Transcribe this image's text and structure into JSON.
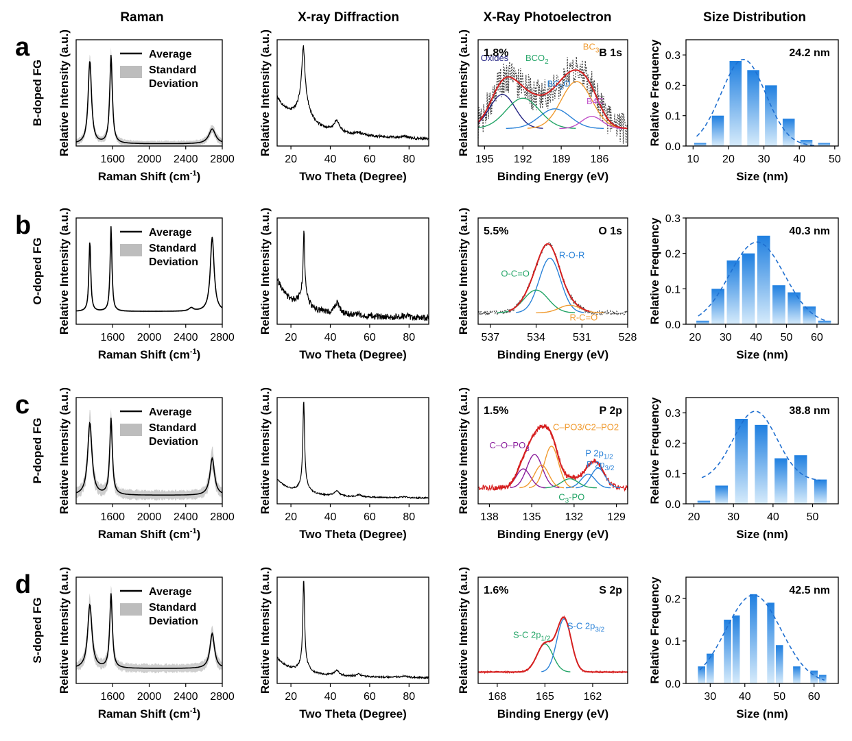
{
  "columns": [
    "Raman",
    "X-ray Diffraction",
    "X-Ray Photoelectron",
    "Size Distribution"
  ],
  "colors": {
    "line": "#000000",
    "band": "#bdbdbd",
    "envelope": "#d62020",
    "raw": "#444444",
    "bar_top": "#1f7fe0",
    "bar_bottom": "#d6ebfb",
    "fit": "#1f6fd0"
  },
  "legend": {
    "average": "Average",
    "std_line1": "Standard",
    "std_line2": "Deviation"
  },
  "chart_data": [
    {
      "row": "a",
      "row_label": "B-doped FG",
      "raman": {
        "type": "line",
        "xlabel": "Raman Shift (cm-1)",
        "xlabel_main": "Raman Shift (cm",
        "xlabel_sup": "-1",
        "xlabel_end": ")",
        "ylabel": "Relative Intensity (a.u.)",
        "xlim": [
          1200,
          2800
        ],
        "xticks": [
          1600,
          2000,
          2400,
          2800
        ],
        "tick_labels": [
          "1600",
          "2000",
          "2400",
          "2800"
        ],
        "peaks": [
          [
            1350,
            0.78,
            22
          ],
          [
            1582,
            0.83,
            17
          ],
          [
            2690,
            0.14,
            45
          ]
        ],
        "baseline": 0.02,
        "std": 0.06
      },
      "xrd": {
        "type": "line",
        "xlabel": "Two Theta (Degree)",
        "ylabel": "Relative Intensity (a.u.)",
        "xlim": [
          13,
          90
        ],
        "xticks": [
          20,
          40,
          60,
          80
        ],
        "tick_labels": [
          "20",
          "40",
          "60",
          "80"
        ],
        "peaks": [
          [
            26.3,
            0.48,
            0.9
          ],
          [
            26.3,
            0.25,
            3.5
          ],
          [
            43.2,
            0.1,
            1.6
          ],
          [
            54.5,
            0.02,
            1.5
          ],
          [
            77.5,
            0.02,
            1.5
          ]
        ],
        "baseline": 0.22,
        "decay": 0.18,
        "noise": 0.012
      },
      "xps": {
        "type": "line",
        "xlabel": "Binding Energy (eV)",
        "ylabel": "Relative Intensity (a.u.)",
        "xlim": [
          195.5,
          183.8
        ],
        "xticks": [
          195,
          192,
          189,
          186
        ],
        "tick_labels": [
          "195",
          "192",
          "189",
          "186"
        ],
        "percent": "1.8%",
        "core": "B 1s",
        "raw_noise": 0.22,
        "base_level": 0.08,
        "components": [
          {
            "label": "Oxides",
            "center": 193.6,
            "amp": 0.45,
            "width": 1.0,
            "color": "#232383",
            "lx": 195.3,
            "ly": 0.97
          },
          {
            "label": "BCO2",
            "center": 192.0,
            "amp": 0.4,
            "width": 1.3,
            "color": "#22a466",
            "lx": 191.8,
            "ly": 0.97
          },
          {
            "label": "BC3",
            "center": 187.8,
            "amp": 0.62,
            "width": 1.2,
            "color": "#f09a2e",
            "lx": 187.3,
            "ly": 1.12
          },
          {
            "label": "BC2O",
            "center": 189.5,
            "amp": 0.26,
            "width": 1.2,
            "color": "#2a82d8",
            "lx": 190.1,
            "ly": 0.63
          },
          {
            "label": "B4C",
            "center": 186.6,
            "amp": 0.16,
            "width": 0.8,
            "color": "#c050c8",
            "lx": 186.3,
            "ly": 0.4
          }
        ],
        "sub": {
          "BCO2": "2",
          "BC3": "3",
          "BC2O": "2"
        }
      },
      "size": {
        "type": "bar",
        "xlabel": "Size (nm)",
        "ylabel": "Relative Frequency",
        "xlim": [
          8,
          51
        ],
        "xticks": [
          10,
          20,
          30,
          40,
          50
        ],
        "tick_labels": [
          "10",
          "20",
          "30",
          "40",
          "50"
        ],
        "ylim": [
          0,
          0.35
        ],
        "yticks": [
          0.0,
          0.1,
          0.2,
          0.3
        ],
        "ytick_labels": [
          "0.0",
          "0.1",
          "0.2",
          "0.3"
        ],
        "mean_label": "24.2 nm",
        "bar_width": 3.4,
        "categories": [
          12,
          17,
          22,
          27,
          32,
          37,
          42,
          47
        ],
        "values": [
          0.01,
          0.1,
          0.28,
          0.25,
          0.2,
          0.09,
          0.02,
          0.01
        ],
        "fit": {
          "mu": 24.2,
          "sigma": 6.3,
          "amp": 0.285,
          "x0": 11,
          "x1": 45
        }
      }
    },
    {
      "row": "b",
      "row_label": "O-doped FG",
      "raman": {
        "type": "line",
        "xlabel": "Raman Shift (cm-1)",
        "xlabel_main": "Raman Shift (cm",
        "xlabel_sup": "-1",
        "xlabel_end": ")",
        "ylabel": "Relative Intensity (a.u.)",
        "xlim": [
          1200,
          2800
        ],
        "xticks": [
          1600,
          2000,
          2400,
          2800
        ],
        "tick_labels": [
          "1600",
          "2000",
          "2400",
          "2800"
        ],
        "peaks": [
          [
            1350,
            0.67,
            12
          ],
          [
            1582,
            0.8,
            12
          ],
          [
            2460,
            0.03,
            30
          ],
          [
            2690,
            0.7,
            25
          ]
        ],
        "baseline": 0.12,
        "std": 0.02
      },
      "xrd": {
        "type": "line",
        "xlabel": "Two Theta (Degree)",
        "ylabel": "Relative Intensity (a.u.)",
        "xlim": [
          13,
          90
        ],
        "xticks": [
          20,
          40,
          60,
          80
        ],
        "tick_labels": [
          "20",
          "40",
          "60",
          "80"
        ],
        "peaks": [
          [
            26.6,
            0.6,
            0.45
          ],
          [
            26.6,
            0.15,
            2.5
          ],
          [
            43.5,
            0.1,
            1.5
          ],
          [
            54.6,
            0.015,
            1.4
          ],
          [
            78.2,
            0.02,
            1.4
          ]
        ],
        "baseline": 0.12,
        "decay": 0.25,
        "noise": 0.03
      },
      "xps": {
        "type": "line",
        "xlabel": "Binding Energy (eV)",
        "ylabel": "Relative Intensity (a.u.)",
        "xlim": [
          537.8,
          528
        ],
        "xticks": [
          537,
          534,
          531,
          528
        ],
        "tick_labels": [
          "537",
          "534",
          "531",
          "528"
        ],
        "percent": "5.5%",
        "core": "O 1s",
        "raw_noise": 0.03,
        "base_level": 0.0,
        "env_range": [
          535.8,
          530.5
        ],
        "components": [
          {
            "label": "R-O-R",
            "center": 533.1,
            "amp": 0.72,
            "width": 0.7,
            "color": "#2a82d8",
            "lx": 532.5,
            "ly": 0.72
          },
          {
            "label": "O-C=O",
            "center": 534.0,
            "amp": 0.3,
            "width": 0.8,
            "color": "#22a466",
            "lx": 536.3,
            "ly": 0.48
          },
          {
            "label": "R-C=O",
            "center": 531.8,
            "amp": 0.1,
            "width": 0.7,
            "color": "#f09a2e",
            "lx": 531.8,
            "ly": -0.1
          }
        ],
        "sub": {}
      },
      "size": {
        "type": "bar",
        "xlabel": "Size (nm)",
        "ylabel": "Relative Frequency",
        "xlim": [
          17,
          67
        ],
        "xticks": [
          20,
          30,
          40,
          50,
          60
        ],
        "tick_labels": [
          "20",
          "30",
          "40",
          "50",
          "60"
        ],
        "ylim": [
          0,
          0.3
        ],
        "yticks": [
          0.0,
          0.1,
          0.2,
          0.3
        ],
        "ytick_labels": [
          "0.0",
          "0.1",
          "0.2",
          "0.3"
        ],
        "mean_label": "40.3 nm",
        "bar_width": 4.2,
        "categories": [
          22.5,
          27.5,
          32.5,
          37.5,
          42.5,
          47.5,
          52.5,
          57.5,
          62.5
        ],
        "values": [
          0.01,
          0.1,
          0.18,
          0.2,
          0.25,
          0.11,
          0.09,
          0.05,
          0.01
        ],
        "fit": {
          "mu": 40.3,
          "sigma": 9.0,
          "amp": 0.232,
          "x0": 21,
          "x1": 63
        }
      }
    },
    {
      "row": "c",
      "row_label": "P-doped FG",
      "raman": {
        "type": "line",
        "xlabel": "Raman Shift (cm-1)",
        "xlabel_main": "Raman Shift (cm",
        "xlabel_sup": "-1",
        "xlabel_end": ")",
        "ylabel": "Relative Intensity (a.u.)",
        "xlim": [
          1200,
          2800
        ],
        "xticks": [
          1600,
          2000,
          2400,
          2800
        ],
        "tick_labels": [
          "1600",
          "2000",
          "2400",
          "2800"
        ],
        "peaks": [
          [
            1350,
            0.68,
            28
          ],
          [
            1582,
            0.72,
            17
          ],
          [
            2690,
            0.35,
            30
          ]
        ],
        "baseline": 0.08,
        "std": 0.1
      },
      "xrd": {
        "type": "line",
        "xlabel": "Two Theta (Degree)",
        "ylabel": "Relative Intensity (a.u.)",
        "xlim": [
          13,
          90
        ],
        "xticks": [
          20,
          40,
          60,
          80
        ],
        "tick_labels": [
          "20",
          "40",
          "60",
          "80"
        ],
        "peaks": [
          [
            26.5,
            0.78,
            0.5
          ],
          [
            26.5,
            0.1,
            2.5
          ],
          [
            43.2,
            0.05,
            1.4
          ],
          [
            54.5,
            0.02,
            1.4
          ],
          [
            77.5,
            0.01,
            1.4
          ]
        ],
        "baseline": 0.06,
        "decay": 0.12,
        "noise": 0.006
      },
      "xps": {
        "type": "line",
        "xlabel": "Binding Energy (eV)",
        "ylabel": "Relative Intensity (a.u.)",
        "xlim": [
          138.8,
          128.2
        ],
        "xticks": [
          138,
          135,
          132,
          129
        ],
        "tick_labels": [
          "138",
          "135",
          "132",
          "129"
        ],
        "percent": "1.5%",
        "core": "P 2p",
        "raw_noise": 0.035,
        "base_level": 0.06,
        "env_range": [
          137.5,
          129.8
        ],
        "components": [
          {
            "label": "C–O–PO3",
            "center": 134.8,
            "amp": 0.44,
            "width": 0.55,
            "color": "#8a1e9c",
            "lx": 138.0,
            "ly": 0.58
          },
          {
            "label": "C–PO3/C2–PO2",
            "center": 133.6,
            "amp": 0.55,
            "width": 0.5,
            "color": "#f09a2e",
            "lx": 133.5,
            "ly": 0.82
          },
          {
            "label": "P 2p1/2",
            "center": 131.0,
            "amp": 0.18,
            "width": 0.5,
            "color": "#2a82d8",
            "lx": 131.2,
            "ly": 0.48
          },
          {
            "label": "P 2p3/2",
            "center": 130.3,
            "amp": 0.26,
            "width": 0.5,
            "color": "#2a82d8",
            "lx": 130.3,
            "ly": 0.33
          },
          {
            "label": "C3-PO",
            "center": 132.3,
            "amp": 0.12,
            "width": 0.6,
            "color": "#22a466",
            "lx": 133.1,
            "ly": -0.1
          },
          {
            "label": "",
            "center": 135.6,
            "amp": 0.25,
            "width": 0.5,
            "color": "#8a1e9c",
            "lx": 0,
            "ly": 0
          },
          {
            "label": "",
            "center": 134.3,
            "amp": 0.3,
            "width": 0.5,
            "color": "#f09a2e",
            "lx": 0,
            "ly": 0
          }
        ],
        "sub": {
          "C–O–PO3": "3",
          "C3-PO": "3",
          "P 2p1/2": "1/2",
          "P 2p3/2": "3/2"
        }
      },
      "size": {
        "type": "bar",
        "xlabel": "Size (nm)",
        "ylabel": "Relative Frequency",
        "xlim": [
          18,
          56.5
        ],
        "xticks": [
          20,
          30,
          40,
          50
        ],
        "tick_labels": [
          "20",
          "30",
          "40",
          "50"
        ],
        "ylim": [
          0,
          0.35
        ],
        "yticks": [
          0.0,
          0.1,
          0.2,
          0.3
        ],
        "ytick_labels": [
          "0.0",
          "0.1",
          "0.2",
          "0.3"
        ],
        "mean_label": "38.8 nm",
        "bar_width": 3.2,
        "categories": [
          22.5,
          27,
          32,
          37,
          42,
          47,
          52
        ],
        "values": [
          0.01,
          0.06,
          0.28,
          0.26,
          0.15,
          0.16,
          0.08
        ],
        "fit": {
          "mu": 35.5,
          "sigma": 5.5,
          "amp": 0.23,
          "base": 0.075,
          "x0": 22,
          "x1": 52
        }
      }
    },
    {
      "row": "d",
      "row_label": "S-doped FG",
      "raman": {
        "type": "line",
        "xlabel": "Raman Shift (cm-1)",
        "xlabel_main": "Raman Shift (cm",
        "xlabel_sup": "-1",
        "xlabel_end": ")",
        "ylabel": "Relative Intensity (a.u.)",
        "xlim": [
          1200,
          2800
        ],
        "xticks": [
          1600,
          2000,
          2400,
          2800
        ],
        "tick_labels": [
          "1600",
          "2000",
          "2400",
          "2800"
        ],
        "peaks": [
          [
            1350,
            0.6,
            28
          ],
          [
            1582,
            0.7,
            17
          ],
          [
            2690,
            0.33,
            30
          ]
        ],
        "baseline": 0.14,
        "std": 0.09
      },
      "xrd": {
        "type": "line",
        "xlabel": "Two Theta (Degree)",
        "ylabel": "Relative Intensity (a.u.)",
        "xlim": [
          13,
          90
        ],
        "xticks": [
          20,
          40,
          60,
          80
        ],
        "tick_labels": [
          "20",
          "40",
          "60",
          "80"
        ],
        "peaks": [
          [
            26.5,
            0.8,
            0.5
          ],
          [
            26.5,
            0.1,
            2.5
          ],
          [
            43.2,
            0.05,
            1.4
          ],
          [
            54.5,
            0.02,
            1.4
          ],
          [
            77.5,
            0.015,
            1.4
          ]
        ],
        "baseline": 0.06,
        "decay": 0.13,
        "noise": 0.008
      },
      "xps": {
        "type": "line",
        "xlabel": "Binding Energy (eV)",
        "ylabel": "Relative Intensity (a.u.)",
        "xlim": [
          169.2,
          159.8
        ],
        "xticks": [
          168,
          165,
          162
        ],
        "tick_labels": [
          "168",
          "165",
          "162"
        ],
        "percent": "1.6%",
        "core": "S 2p",
        "raw_noise": 0.012,
        "base_level": 0.0,
        "env_range": [
          169.2,
          159.8
        ],
        "components": [
          {
            "label": "S-C 2p1/2",
            "center": 165.0,
            "amp": 0.37,
            "width": 0.5,
            "color": "#22a466",
            "lx": 167.0,
            "ly": 0.45
          },
          {
            "label": "S-C 2p3/2",
            "center": 163.8,
            "amp": 0.7,
            "width": 0.45,
            "color": "#2a82d8",
            "lx": 163.6,
            "ly": 0.57
          }
        ],
        "sub": {
          "S-C 2p1/2": "1/2",
          "S-C 2p3/2": "3/2"
        }
      },
      "size": {
        "type": "bar",
        "xlabel": "Size (nm)",
        "ylabel": "Relative Frequency",
        "xlim": [
          23,
          67
        ],
        "xticks": [
          30,
          40,
          50,
          60
        ],
        "tick_labels": [
          "30",
          "40",
          "50",
          "60"
        ],
        "ylim": [
          0,
          0.25
        ],
        "yticks": [
          0.0,
          0.1,
          0.2
        ],
        "ytick_labels": [
          "0.0",
          "0.1",
          "0.2"
        ],
        "mean_label": "42.5 nm",
        "bar_width": 2.1,
        "categories": [
          27.5,
          30,
          35,
          37.5,
          42.5,
          47.5,
          50,
          55,
          60,
          62.5
        ],
        "values": [
          0.04,
          0.07,
          0.15,
          0.16,
          0.21,
          0.19,
          0.09,
          0.04,
          0.03,
          0.02
        ],
        "fit": {
          "mu": 42.5,
          "sigma": 8.0,
          "amp": 0.208,
          "x0": 27,
          "x1": 63
        }
      }
    }
  ]
}
